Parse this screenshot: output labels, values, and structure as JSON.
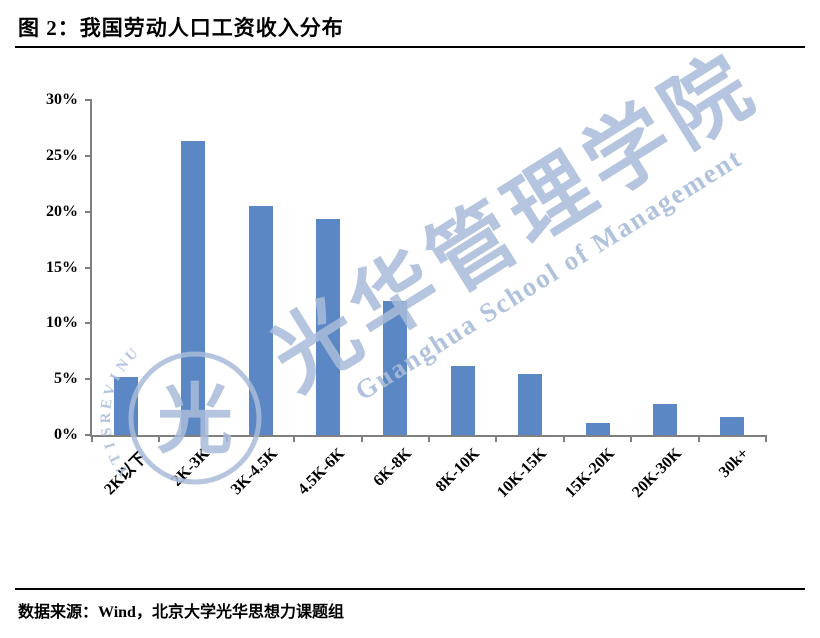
{
  "title": "图 2：我国劳动人口工资收入分布",
  "source": "数据来源：Wind，北京大学光华思想力课题组",
  "watermark": {
    "cn": "光华管理学院",
    "en": "Guanghua School of Management",
    "arc_text": "UNIVERSITY",
    "seal_glyph": "光",
    "color": "#a9bcda"
  },
  "chart_data": {
    "type": "bar",
    "title": "我国劳动人口工资收入分布",
    "categories": [
      "2K以下",
      "2K-3K",
      "3K-4.5K",
      "4.5K-6K",
      "6K-8K",
      "8K-10K",
      "10K-15K",
      "15K-20K",
      "20K-30K",
      "30k+"
    ],
    "values": [
      5.2,
      26.3,
      20.5,
      19.3,
      12.0,
      6.2,
      5.5,
      1.1,
      2.8,
      1.6
    ],
    "ylim": [
      0,
      30
    ],
    "ytick_values": [
      0,
      5,
      10,
      15,
      20,
      25,
      30
    ],
    "ytick_labels": [
      "0%",
      "5%",
      "10%",
      "15%",
      "20%",
      "25%",
      "30%"
    ],
    "bar_color": "#5B87C5",
    "axis_color": "#7f7f7f",
    "grid": false,
    "legend_position": "none",
    "xlabel": "",
    "ylabel": ""
  }
}
